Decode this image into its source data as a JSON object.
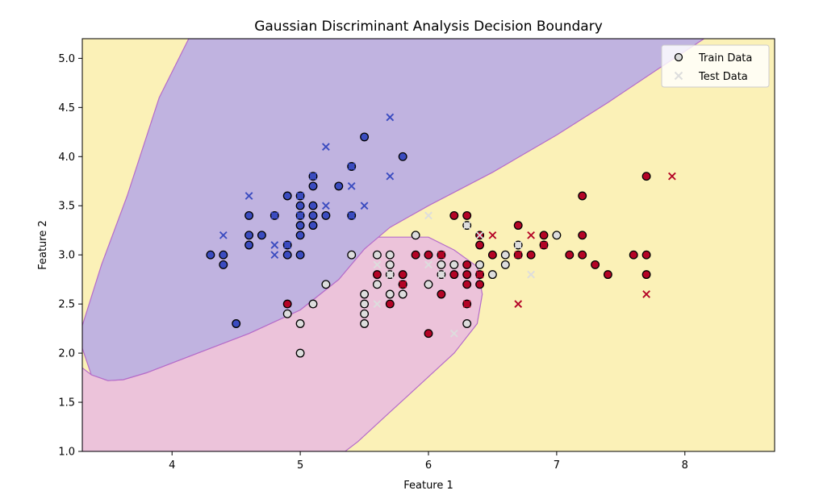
{
  "chart_data": {
    "type": "scatter",
    "title": "Gaussian Discriminant Analysis Decision Boundary",
    "xlabel": "Feature 1",
    "ylabel": "Feature 2",
    "xlim": [
      3.3,
      8.7
    ],
    "ylim": [
      1.0,
      5.2
    ],
    "x_ticks": [
      4,
      5,
      6,
      7,
      8
    ],
    "y_ticks": [
      1.0,
      1.5,
      2.0,
      2.5,
      3.0,
      3.5,
      4.0,
      4.5,
      5.0
    ],
    "x_tick_labels": [
      "4",
      "5",
      "6",
      "7",
      "8"
    ],
    "y_tick_labels": [
      "1.0",
      "1.5",
      "2.0",
      "2.5",
      "3.0",
      "3.5",
      "4.0",
      "4.5",
      "5.0"
    ],
    "grid": false,
    "legend_placement": "top-right",
    "legend": [
      "Train Data",
      "Test Data"
    ],
    "class_colors": {
      "0": "#3b4cc0",
      "1": "#dddddd",
      "2": "#b40426"
    },
    "region_colors": {
      "0": "#c0b3e0",
      "1": "#ecc3da",
      "2": "#fbf1b7"
    },
    "boundary_color": "#b56cc9",
    "decision_regions": {
      "class0": [
        [
          3.3,
          2.28
        ],
        [
          3.3,
          2.05
        ],
        [
          3.37,
          1.78
        ],
        [
          3.5,
          1.72
        ],
        [
          3.62,
          1.73
        ],
        [
          3.8,
          1.8
        ],
        [
          4.2,
          2.0
        ],
        [
          4.6,
          2.2
        ],
        [
          5.0,
          2.44
        ],
        [
          5.3,
          2.75
        ],
        [
          5.5,
          3.06
        ],
        [
          5.7,
          3.28
        ],
        [
          6.0,
          3.5
        ],
        [
          6.5,
          3.84
        ],
        [
          7.0,
          4.22
        ],
        [
          7.4,
          4.55
        ],
        [
          7.8,
          4.9
        ],
        [
          8.15,
          5.2
        ],
        [
          4.13,
          5.2
        ],
        [
          3.9,
          4.6
        ],
        [
          3.65,
          3.6
        ],
        [
          3.45,
          2.9
        ]
      ],
      "class1": [
        [
          3.3,
          1.0
        ],
        [
          3.3,
          1.85
        ],
        [
          3.37,
          1.78
        ],
        [
          3.5,
          1.72
        ],
        [
          3.62,
          1.73
        ],
        [
          3.8,
          1.8
        ],
        [
          4.2,
          2.0
        ],
        [
          4.6,
          2.2
        ],
        [
          5.0,
          2.44
        ],
        [
          5.3,
          2.75
        ],
        [
          5.5,
          3.06
        ],
        [
          5.6,
          3.18
        ],
        [
          6.0,
          3.18
        ],
        [
          6.2,
          3.05
        ],
        [
          6.38,
          2.88
        ],
        [
          6.42,
          2.6
        ],
        [
          6.38,
          2.3
        ],
        [
          6.2,
          2.0
        ],
        [
          5.95,
          1.7
        ],
        [
          5.7,
          1.4
        ],
        [
          5.45,
          1.1
        ],
        [
          5.35,
          1.0
        ]
      ]
    },
    "series": [
      {
        "name": "Train Data",
        "marker": "circle",
        "points": [
          {
            "x": 4.3,
            "y": 3.0,
            "c": 0
          },
          {
            "x": 4.4,
            "y": 3.0,
            "c": 0
          },
          {
            "x": 4.4,
            "y": 2.9,
            "c": 0
          },
          {
            "x": 4.5,
            "y": 2.3,
            "c": 0
          },
          {
            "x": 4.6,
            "y": 3.4,
            "c": 0
          },
          {
            "x": 4.6,
            "y": 3.2,
            "c": 0
          },
          {
            "x": 4.6,
            "y": 3.1,
            "c": 0
          },
          {
            "x": 4.7,
            "y": 3.2,
            "c": 0
          },
          {
            "x": 4.8,
            "y": 3.4,
            "c": 0
          },
          {
            "x": 4.9,
            "y": 3.6,
            "c": 0
          },
          {
            "x": 4.9,
            "y": 3.1,
            "c": 0
          },
          {
            "x": 4.9,
            "y": 3.0,
            "c": 0
          },
          {
            "x": 5.0,
            "y": 3.6,
            "c": 0
          },
          {
            "x": 5.0,
            "y": 3.5,
            "c": 0
          },
          {
            "x": 5.0,
            "y": 3.4,
            "c": 0
          },
          {
            "x": 5.0,
            "y": 3.3,
            "c": 0
          },
          {
            "x": 5.0,
            "y": 3.2,
            "c": 0
          },
          {
            "x": 5.0,
            "y": 3.0,
            "c": 0
          },
          {
            "x": 5.1,
            "y": 3.8,
            "c": 0
          },
          {
            "x": 5.1,
            "y": 3.7,
            "c": 0
          },
          {
            "x": 5.1,
            "y": 3.5,
            "c": 0
          },
          {
            "x": 5.1,
            "y": 3.4,
            "c": 0
          },
          {
            "x": 5.1,
            "y": 3.3,
            "c": 0
          },
          {
            "x": 5.2,
            "y": 3.4,
            "c": 0
          },
          {
            "x": 5.3,
            "y": 3.7,
            "c": 0
          },
          {
            "x": 5.4,
            "y": 3.9,
            "c": 0
          },
          {
            "x": 5.4,
            "y": 3.4,
            "c": 0
          },
          {
            "x": 5.5,
            "y": 4.2,
            "c": 0
          },
          {
            "x": 5.8,
            "y": 4.0,
            "c": 0
          },
          {
            "x": 4.9,
            "y": 2.4,
            "c": 1
          },
          {
            "x": 5.0,
            "y": 2.3,
            "c": 1
          },
          {
            "x": 5.0,
            "y": 2.0,
            "c": 1
          },
          {
            "x": 5.1,
            "y": 2.5,
            "c": 1
          },
          {
            "x": 5.2,
            "y": 2.7,
            "c": 1
          },
          {
            "x": 5.4,
            "y": 3.0,
            "c": 1
          },
          {
            "x": 5.5,
            "y": 2.6,
            "c": 1
          },
          {
            "x": 5.5,
            "y": 2.5,
            "c": 1
          },
          {
            "x": 5.5,
            "y": 2.4,
            "c": 1
          },
          {
            "x": 5.5,
            "y": 2.3,
            "c": 1
          },
          {
            "x": 5.6,
            "y": 3.0,
            "c": 1
          },
          {
            "x": 5.6,
            "y": 2.7,
            "c": 1
          },
          {
            "x": 5.7,
            "y": 3.0,
            "c": 1
          },
          {
            "x": 5.7,
            "y": 2.9,
            "c": 1
          },
          {
            "x": 5.7,
            "y": 2.8,
            "c": 1
          },
          {
            "x": 5.7,
            "y": 2.6,
            "c": 1
          },
          {
            "x": 5.8,
            "y": 2.7,
            "c": 1
          },
          {
            "x": 5.8,
            "y": 2.6,
            "c": 1
          },
          {
            "x": 5.9,
            "y": 3.2,
            "c": 1
          },
          {
            "x": 6.0,
            "y": 2.7,
            "c": 1
          },
          {
            "x": 6.1,
            "y": 2.9,
            "c": 1
          },
          {
            "x": 6.1,
            "y": 2.8,
            "c": 1
          },
          {
            "x": 6.2,
            "y": 2.9,
            "c": 1
          },
          {
            "x": 6.3,
            "y": 3.3,
            "c": 1
          },
          {
            "x": 6.3,
            "y": 2.3,
            "c": 1
          },
          {
            "x": 6.4,
            "y": 2.9,
            "c": 1
          },
          {
            "x": 6.5,
            "y": 2.8,
            "c": 1
          },
          {
            "x": 6.6,
            "y": 3.0,
            "c": 1
          },
          {
            "x": 6.6,
            "y": 2.9,
            "c": 1
          },
          {
            "x": 6.7,
            "y": 3.1,
            "c": 1
          },
          {
            "x": 7.0,
            "y": 3.2,
            "c": 1
          },
          {
            "x": 4.9,
            "y": 2.5,
            "c": 2
          },
          {
            "x": 5.6,
            "y": 2.8,
            "c": 2
          },
          {
            "x": 5.7,
            "y": 2.5,
            "c": 2
          },
          {
            "x": 5.8,
            "y": 2.8,
            "c": 2
          },
          {
            "x": 5.8,
            "y": 2.7,
            "c": 2
          },
          {
            "x": 5.9,
            "y": 3.0,
            "c": 2
          },
          {
            "x": 6.0,
            "y": 3.0,
            "c": 2
          },
          {
            "x": 6.0,
            "y": 2.2,
            "c": 2
          },
          {
            "x": 6.1,
            "y": 3.0,
            "c": 2
          },
          {
            "x": 6.1,
            "y": 2.6,
            "c": 2
          },
          {
            "x": 6.2,
            "y": 3.4,
            "c": 2
          },
          {
            "x": 6.2,
            "y": 2.8,
            "c": 2
          },
          {
            "x": 6.3,
            "y": 3.4,
            "c": 2
          },
          {
            "x": 6.3,
            "y": 2.9,
            "c": 2
          },
          {
            "x": 6.3,
            "y": 2.8,
            "c": 2
          },
          {
            "x": 6.3,
            "y": 2.7,
            "c": 2
          },
          {
            "x": 6.3,
            "y": 2.5,
            "c": 2
          },
          {
            "x": 6.4,
            "y": 3.2,
            "c": 2
          },
          {
            "x": 6.4,
            "y": 3.1,
            "c": 2
          },
          {
            "x": 6.4,
            "y": 2.8,
            "c": 2
          },
          {
            "x": 6.4,
            "y": 2.7,
            "c": 2
          },
          {
            "x": 6.5,
            "y": 3.0,
            "c": 2
          },
          {
            "x": 6.7,
            "y": 3.3,
            "c": 2
          },
          {
            "x": 6.7,
            "y": 3.0,
            "c": 2
          },
          {
            "x": 6.8,
            "y": 3.0,
            "c": 2
          },
          {
            "x": 6.9,
            "y": 3.2,
            "c": 2
          },
          {
            "x": 6.9,
            "y": 3.1,
            "c": 2
          },
          {
            "x": 7.1,
            "y": 3.0,
            "c": 2
          },
          {
            "x": 7.2,
            "y": 3.6,
            "c": 2
          },
          {
            "x": 7.2,
            "y": 3.2,
            "c": 2
          },
          {
            "x": 7.2,
            "y": 3.0,
            "c": 2
          },
          {
            "x": 7.3,
            "y": 2.9,
            "c": 2
          },
          {
            "x": 7.4,
            "y": 2.8,
            "c": 2
          },
          {
            "x": 7.6,
            "y": 3.0,
            "c": 2
          },
          {
            "x": 7.7,
            "y": 3.8,
            "c": 2
          },
          {
            "x": 7.7,
            "y": 3.0,
            "c": 2
          },
          {
            "x": 7.7,
            "y": 2.8,
            "c": 2
          }
        ]
      },
      {
        "name": "Test Data",
        "marker": "x",
        "points": [
          {
            "x": 4.4,
            "y": 3.2,
            "c": 0
          },
          {
            "x": 4.6,
            "y": 3.6,
            "c": 0
          },
          {
            "x": 4.8,
            "y": 3.4,
            "c": 0
          },
          {
            "x": 4.8,
            "y": 3.1,
            "c": 0
          },
          {
            "x": 4.8,
            "y": 3.0,
            "c": 0
          },
          {
            "x": 4.9,
            "y": 3.1,
            "c": 0
          },
          {
            "x": 5.0,
            "y": 3.6,
            "c": 0
          },
          {
            "x": 5.0,
            "y": 3.4,
            "c": 0
          },
          {
            "x": 5.1,
            "y": 3.8,
            "c": 0
          },
          {
            "x": 5.2,
            "y": 4.1,
            "c": 0
          },
          {
            "x": 5.2,
            "y": 3.5,
            "c": 0
          },
          {
            "x": 5.4,
            "y": 3.9,
            "c": 0
          },
          {
            "x": 5.4,
            "y": 3.7,
            "c": 0
          },
          {
            "x": 5.4,
            "y": 3.4,
            "c": 0
          },
          {
            "x": 5.5,
            "y": 3.5,
            "c": 0
          },
          {
            "x": 5.7,
            "y": 4.4,
            "c": 0
          },
          {
            "x": 5.7,
            "y": 3.8,
            "c": 0
          },
          {
            "x": 5.6,
            "y": 2.9,
            "c": 1
          },
          {
            "x": 5.6,
            "y": 2.5,
            "c": 1
          },
          {
            "x": 5.7,
            "y": 2.8,
            "c": 1
          },
          {
            "x": 6.0,
            "y": 3.4,
            "c": 1
          },
          {
            "x": 6.0,
            "y": 2.9,
            "c": 1
          },
          {
            "x": 6.1,
            "y": 2.8,
            "c": 1
          },
          {
            "x": 6.2,
            "y": 2.2,
            "c": 1
          },
          {
            "x": 6.3,
            "y": 3.3,
            "c": 1
          },
          {
            "x": 6.4,
            "y": 3.2,
            "c": 1
          },
          {
            "x": 6.7,
            "y": 3.1,
            "c": 1
          },
          {
            "x": 6.8,
            "y": 2.8,
            "c": 1
          },
          {
            "x": 5.8,
            "y": 2.7,
            "c": 2
          },
          {
            "x": 6.1,
            "y": 3.0,
            "c": 2
          },
          {
            "x": 6.3,
            "y": 2.5,
            "c": 2
          },
          {
            "x": 6.4,
            "y": 2.8,
            "c": 2
          },
          {
            "x": 6.5,
            "y": 3.2,
            "c": 2
          },
          {
            "x": 6.7,
            "y": 3.0,
            "c": 2
          },
          {
            "x": 6.7,
            "y": 2.5,
            "c": 2
          },
          {
            "x": 6.8,
            "y": 3.2,
            "c": 2
          },
          {
            "x": 6.9,
            "y": 3.1,
            "c": 2
          },
          {
            "x": 7.7,
            "y": 2.6,
            "c": 2
          },
          {
            "x": 7.9,
            "y": 3.8,
            "c": 2
          }
        ]
      }
    ]
  }
}
